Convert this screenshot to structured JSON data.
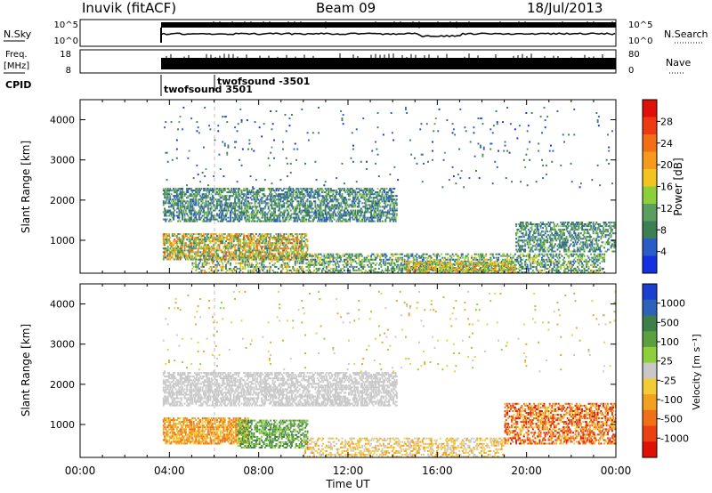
{
  "header": {
    "station": "Inuvik (fitACF)",
    "beam": "Beam 09",
    "date": "18/Jul/2013"
  },
  "status_panels": {
    "nsky_label": "N.Sky",
    "nsky_ticks": [
      "10^5",
      "10^0"
    ],
    "nsearch_label": "N.Search",
    "nsearch_ticks": [
      "10^5",
      "10^0"
    ],
    "freq_label_top": "Freq.",
    "freq_label_unit": "[MHz]",
    "freq_ticks": [
      "18",
      "8"
    ],
    "nave_label": "Nave",
    "nave_ticks": [
      "80",
      "0"
    ],
    "cpid_label": "CPID",
    "cpid_entries": [
      "twofsound 3501",
      "twofsound -3501"
    ]
  },
  "colors": {
    "power_scale": [
      "#1430e0",
      "#2a5cc8",
      "#3c7f55",
      "#5a9e60",
      "#8ccf3a",
      "#f2c420",
      "#f59a1c",
      "#f36e14",
      "#ee3a10",
      "#e01008"
    ],
    "velocity_scale": [
      "#1a3fd0",
      "#2e62b8",
      "#3c7f48",
      "#5aa040",
      "#8ed03c",
      "#c8c8c8",
      "#f2cc36",
      "#f2a020",
      "#f07018",
      "#ea4012",
      "#e01008"
    ]
  },
  "chart_data": [
    {
      "type": "heatmap",
      "name": "power",
      "xlabel": "Time UT",
      "ylabel": "Slant Range [km]",
      "x_ticks": [
        "00:00",
        "04:00",
        "08:00",
        "12:00",
        "16:00",
        "20:00",
        "00:00"
      ],
      "y_ticks": [
        "1000",
        "2000",
        "3000",
        "4000"
      ],
      "ylim": [
        180,
        4500
      ],
      "colorbar_label": "Power [dB]",
      "colorbar_ticks": [
        "4",
        "8",
        "12",
        "16",
        "20",
        "24",
        "28"
      ],
      "colorbar_range": [
        0,
        32
      ],
      "blobs": [
        {
          "t0": 3.7,
          "t1": 14.2,
          "r0": 1450,
          "r1": 2300,
          "density": 0.55,
          "vmin": 3,
          "vmax": 14
        },
        {
          "t0": 3.7,
          "t1": 10.2,
          "r0": 500,
          "r1": 1150,
          "density": 0.6,
          "vmin": 6,
          "vmax": 26
        },
        {
          "t0": 5.0,
          "t1": 10.0,
          "r0": 180,
          "r1": 600,
          "density": 0.35,
          "vmin": 4,
          "vmax": 22
        },
        {
          "t0": 10.0,
          "t1": 23.5,
          "r0": 180,
          "r1": 650,
          "density": 0.45,
          "vmin": 4,
          "vmax": 18
        },
        {
          "t0": 14.5,
          "t1": 19.5,
          "r0": 200,
          "r1": 450,
          "density": 0.55,
          "vmin": 8,
          "vmax": 24
        },
        {
          "t0": 19.5,
          "t1": 24.0,
          "r0": 700,
          "r1": 1450,
          "density": 0.45,
          "vmin": 4,
          "vmax": 14
        },
        {
          "t0": 3.7,
          "t1": 24.0,
          "r0": 2300,
          "r1": 4300,
          "density": 0.015,
          "vmin": 2,
          "vmax": 10
        }
      ]
    },
    {
      "type": "heatmap",
      "name": "velocity",
      "xlabel": "Time UT",
      "ylabel": "Slant Range [km]",
      "x_ticks": [
        "00:00",
        "04:00",
        "08:00",
        "12:00",
        "16:00",
        "20:00",
        "00:00"
      ],
      "y_ticks": [
        "1000",
        "2000",
        "3000",
        "4000"
      ],
      "ylim": [
        180,
        4500
      ],
      "colorbar_label": "Velocity [m s⁻¹]",
      "colorbar_ticks": [
        "1000",
        "500",
        "100",
        "25",
        "-25",
        "-100",
        "-500",
        "-1000"
      ],
      "blobs": [
        {
          "t0": 3.7,
          "t1": 14.2,
          "r0": 1450,
          "r1": 2300,
          "density": 0.55,
          "bin_min": 5,
          "bin_max": 5
        },
        {
          "t0": 3.7,
          "t1": 7.5,
          "r0": 500,
          "r1": 1150,
          "density": 0.65,
          "bin_min": 6,
          "bin_max": 8
        },
        {
          "t0": 7.0,
          "t1": 10.2,
          "r0": 400,
          "r1": 1100,
          "density": 0.5,
          "bin_min": 2,
          "bin_max": 4
        },
        {
          "t0": 10.0,
          "t1": 19.0,
          "r0": 180,
          "r1": 650,
          "density": 0.35,
          "bin_min": 5,
          "bin_max": 7
        },
        {
          "t0": 19.0,
          "t1": 24.0,
          "r0": 500,
          "r1": 1500,
          "density": 0.5,
          "bin_min": 6,
          "bin_max": 10
        },
        {
          "t0": 3.7,
          "t1": 24.0,
          "r0": 2300,
          "r1": 4300,
          "density": 0.015,
          "bin_min": 4,
          "bin_max": 7
        }
      ]
    }
  ]
}
